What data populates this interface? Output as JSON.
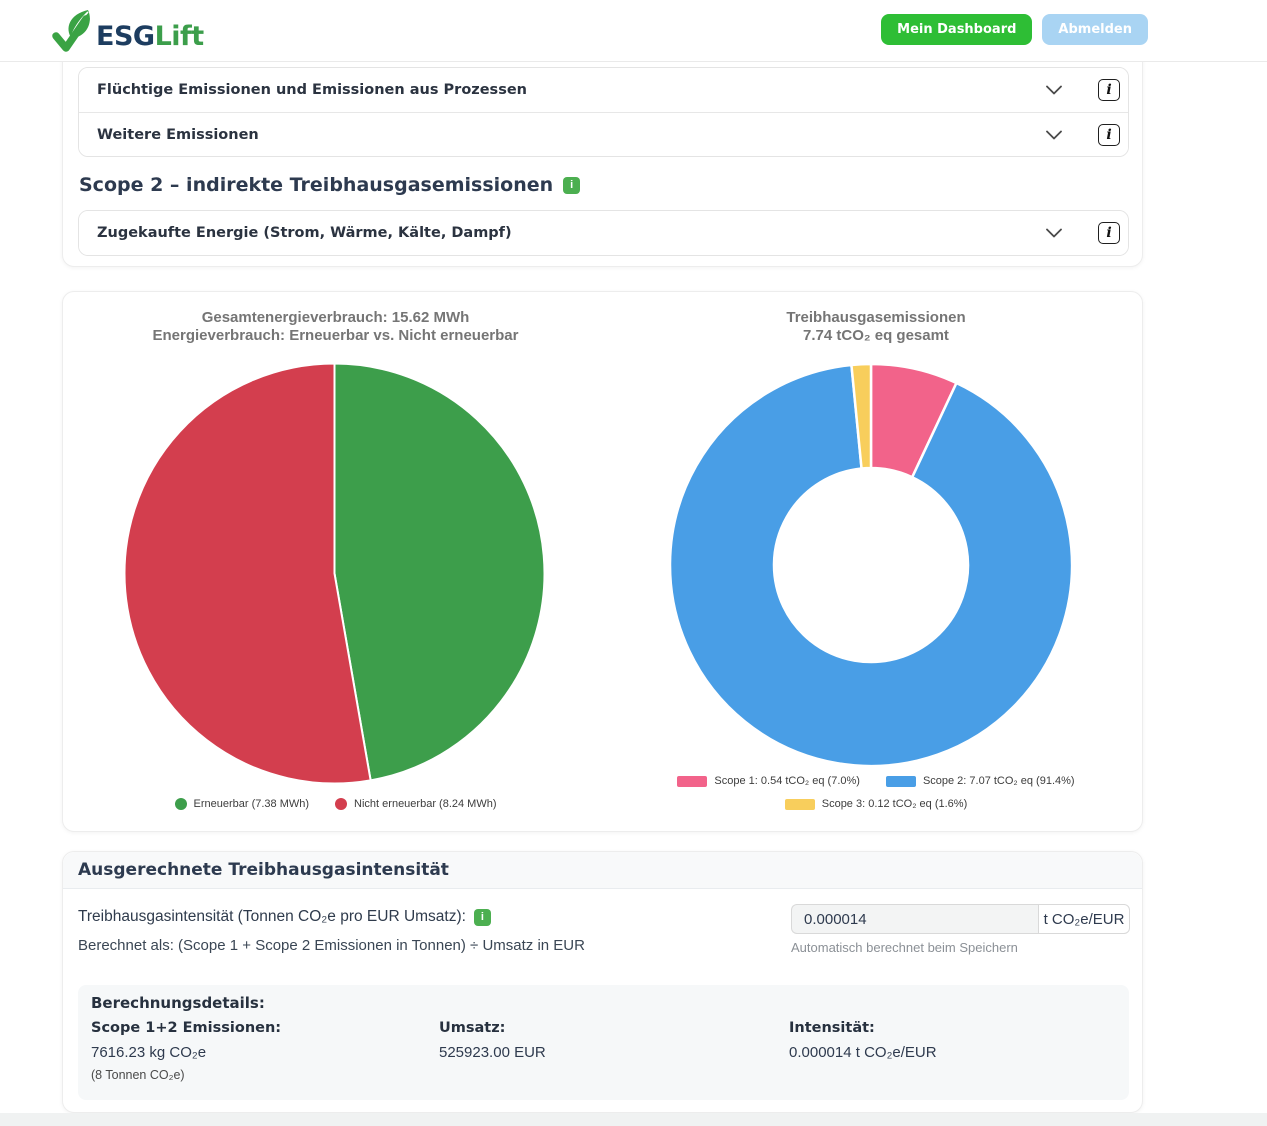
{
  "header": {
    "brand": {
      "esg": "ESG",
      "lift": "Lift"
    },
    "buttons": {
      "dashboard": "Mein Dashboard",
      "logout": "Abmelden"
    },
    "colors": {
      "dashboard_bg": "#2ebe35",
      "logout_bg": "#a9d4f3"
    }
  },
  "icons": {
    "info_box": "i",
    "info_badge": "i"
  },
  "scope1_section": {
    "rows": [
      {
        "label": "Flüchtige Emissionen und Emissionen aus Prozessen"
      },
      {
        "label": "Weitere Emissionen"
      }
    ]
  },
  "scope2_section": {
    "title": "Scope 2 – indirekte Treibhausgasemissionen",
    "rows": [
      {
        "label": "Zugekaufte Energie (Strom, Wärme, Kälte, Dampf)"
      }
    ]
  },
  "chart_data": [
    {
      "type": "pie",
      "title_lines": [
        "Gesamtenergieverbrauch: 15.62 MWh",
        "Energieverbrauch: Erneuerbar vs. Nicht erneuerbar"
      ],
      "categories": [
        "Erneuerbar",
        "Nicht erneuerbar"
      ],
      "values": [
        7.38,
        8.24
      ],
      "total": 15.62,
      "unit": "MWh",
      "colors": [
        "#3d9e4b",
        "#d33e4e"
      ],
      "legend": [
        "Erneuerbar (7.38 MWh)",
        "Nicht erneuerbar (8.24 MWh)"
      ],
      "legend_marker": "circle",
      "legend_position": "bottom"
    },
    {
      "type": "donut",
      "title_lines": [
        "Treibhausgasemissionen",
        "7.74 tCO₂ eq gesamt"
      ],
      "categories": [
        "Scope 1",
        "Scope 2",
        "Scope 3"
      ],
      "values": [
        0.54,
        7.07,
        0.12
      ],
      "percents": [
        7.0,
        91.4,
        1.6
      ],
      "total": 7.74,
      "unit": "tCO₂ eq",
      "colors": [
        "#f2638a",
        "#499ee6",
        "#f8ce5c"
      ],
      "legend": [
        "Scope 1: 0.54 tCO₂ eq (7.0%)",
        "Scope 2: 7.07 tCO₂ eq (91.4%)",
        "Scope 3: 0.12 tCO₂ eq (1.6%)"
      ],
      "legend_marker": "rect",
      "legend_position": "bottom"
    }
  ],
  "intensity": {
    "header": "Ausgerechnete Treibhausgasintensität",
    "label": "Treibhausgasintensität (Tonnen CO₂e pro EUR Umsatz):",
    "formula": "Berechnet als: (Scope 1 + Scope 2 Emissionen in Tonnen) ÷ Umsatz in EUR",
    "value": "0.000014",
    "unit": "t CO₂e/EUR",
    "auto_note": "Automatisch berechnet beim Speichern",
    "details": {
      "title": "Berechnungsdetails:",
      "columns": [
        {
          "label": "Scope 1+2 Emissionen:",
          "value": "7616.23 kg CO₂e",
          "note": "(8 Tonnen CO₂e)"
        },
        {
          "label": "Umsatz:",
          "value": "525923.00 EUR",
          "note": ""
        },
        {
          "label": "Intensität:",
          "value": "0.000014 t CO₂e/EUR",
          "note": ""
        }
      ]
    }
  }
}
